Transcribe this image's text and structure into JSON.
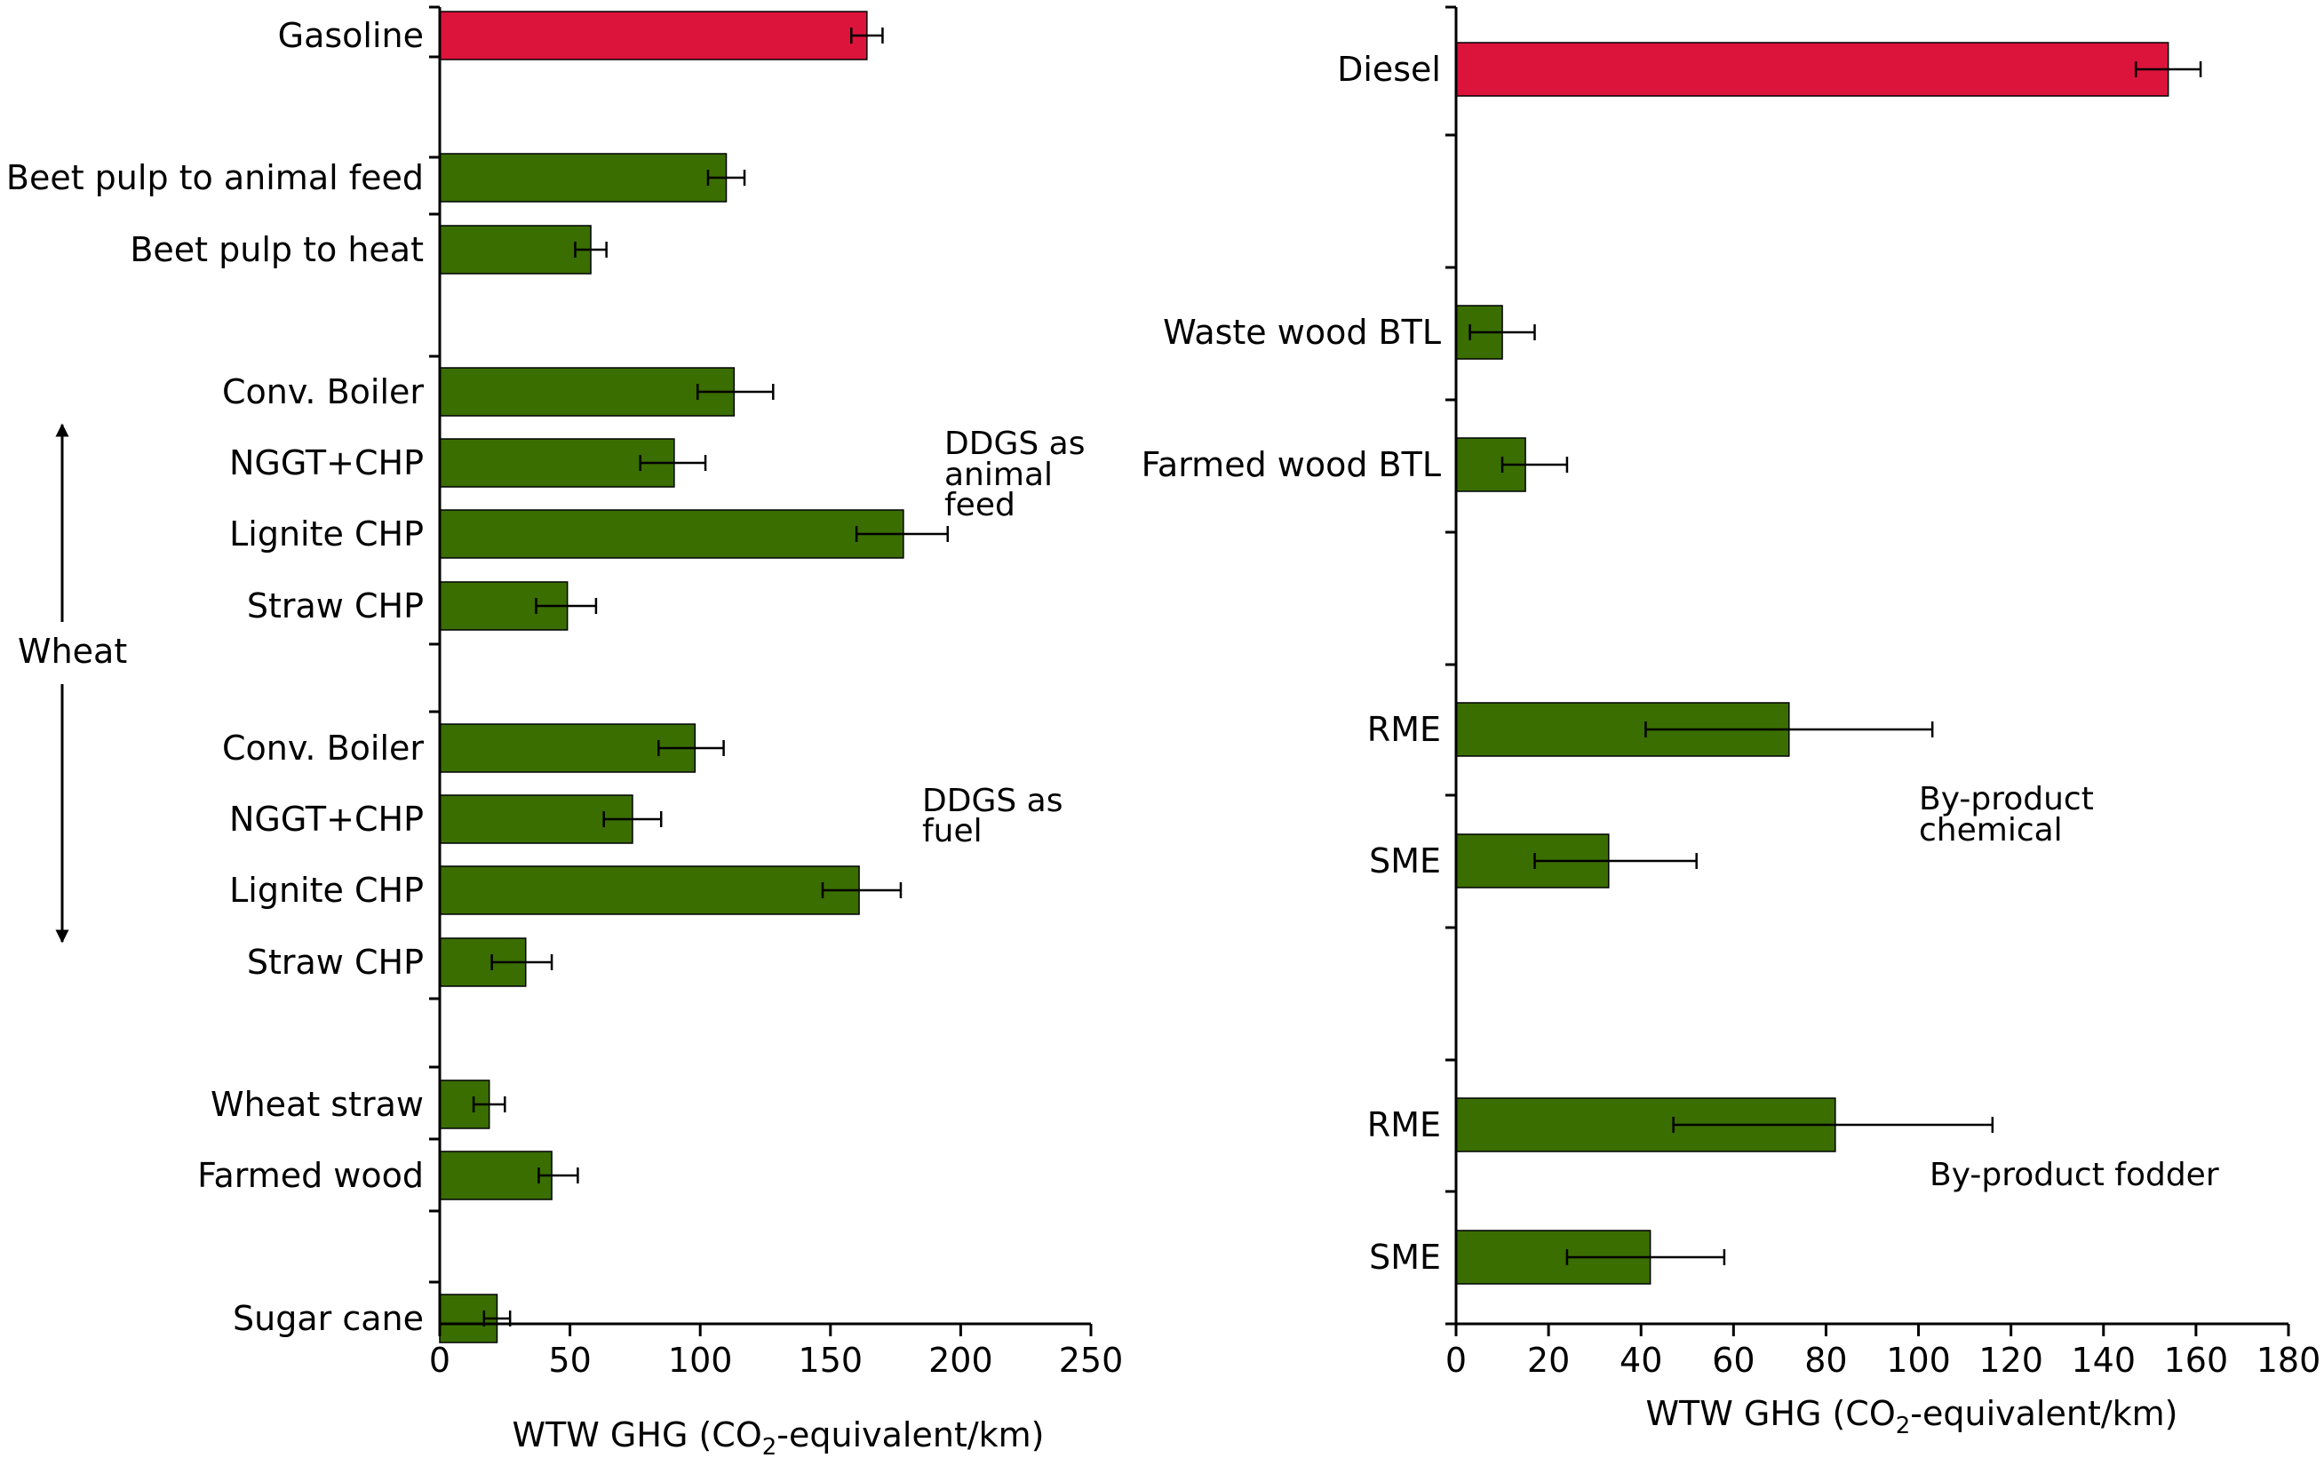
{
  "colors": {
    "fossil": "#dc143c",
    "bio": "#3a6e00",
    "axis": "#000000"
  },
  "chart_data": [
    {
      "type": "bar",
      "orientation": "horizontal",
      "xlabel_pre": "WTW GHG (CO",
      "xlabel_sub": "2",
      "xlabel_post": "-equivalent/km)",
      "xlim": [
        0,
        250
      ],
      "xticks": [
        0,
        50,
        100,
        150,
        200,
        250
      ],
      "rows": [
        {
          "label": "Gasoline",
          "value": 164,
          "err_low": 158,
          "err_high": 170,
          "kind": "fossil"
        },
        {
          "label": "Beet pulp to animal feed",
          "value": 110,
          "err_low": 103,
          "err_high": 117,
          "kind": "bio"
        },
        {
          "label": "Beet pulp to heat",
          "value": 58,
          "err_low": 52,
          "err_high": 64,
          "kind": "bio"
        },
        {
          "label": "Conv. Boiler",
          "value": 113,
          "err_low": 99,
          "err_high": 128,
          "kind": "bio"
        },
        {
          "label": "NGGT+CHP",
          "value": 90,
          "err_low": 77,
          "err_high": 102,
          "kind": "bio"
        },
        {
          "label": "Lignite CHP",
          "value": 178,
          "err_low": 160,
          "err_high": 195,
          "kind": "bio"
        },
        {
          "label": "Straw CHP",
          "value": 49,
          "err_low": 37,
          "err_high": 60,
          "kind": "bio"
        },
        {
          "label": "Conv. Boiler",
          "value": 98,
          "err_low": 84,
          "err_high": 109,
          "kind": "bio"
        },
        {
          "label": "NGGT+CHP",
          "value": 74,
          "err_low": 63,
          "err_high": 85,
          "kind": "bio"
        },
        {
          "label": "Lignite CHP",
          "value": 161,
          "err_low": 147,
          "err_high": 177,
          "kind": "bio"
        },
        {
          "label": "Straw CHP",
          "value": 33,
          "err_low": 20,
          "err_high": 43,
          "kind": "bio"
        },
        {
          "label": "Wheat straw",
          "value": 19,
          "err_low": 13,
          "err_high": 25,
          "kind": "bio"
        },
        {
          "label": "Farmed wood",
          "value": 43,
          "err_low": 38,
          "err_high": 53,
          "kind": "bio"
        },
        {
          "label": "Sugar cane",
          "value": 22,
          "err_low": 17,
          "err_high": 27,
          "kind": "bio"
        }
      ],
      "group_label": "Wheat",
      "annotations": [
        {
          "lines": [
            "DDGS as",
            "animal",
            "feed"
          ]
        },
        {
          "lines": [
            "DDGS as",
            "fuel"
          ]
        }
      ]
    },
    {
      "type": "bar",
      "orientation": "horizontal",
      "xlabel_pre": "WTW GHG (CO",
      "xlabel_sub": "2",
      "xlabel_post": "-equivalent/km)",
      "xlim": [
        0,
        180
      ],
      "xticks": [
        0,
        20,
        40,
        60,
        80,
        100,
        120,
        140,
        160,
        180
      ],
      "rows": [
        {
          "label": "Diesel",
          "value": 154,
          "err_low": 147,
          "err_high": 161,
          "kind": "fossil"
        },
        {
          "label": "Waste wood BTL",
          "value": 10,
          "err_low": 3,
          "err_high": 17,
          "kind": "bio"
        },
        {
          "label": "Farmed wood BTL",
          "value": 15,
          "err_low": 10,
          "err_high": 24,
          "kind": "bio"
        },
        {
          "label": "RME",
          "value": 72,
          "err_low": 41,
          "err_high": 103,
          "kind": "bio"
        },
        {
          "label": "SME",
          "value": 33,
          "err_low": 17,
          "err_high": 52,
          "kind": "bio"
        },
        {
          "label": "RME",
          "value": 82,
          "err_low": 47,
          "err_high": 116,
          "kind": "bio"
        },
        {
          "label": "SME",
          "value": 42,
          "err_low": 24,
          "err_high": 58,
          "kind": "bio"
        }
      ],
      "annotations": [
        {
          "lines": [
            "By-product",
            "chemical"
          ]
        },
        {
          "lines": [
            "By-product fodder"
          ]
        }
      ]
    }
  ]
}
